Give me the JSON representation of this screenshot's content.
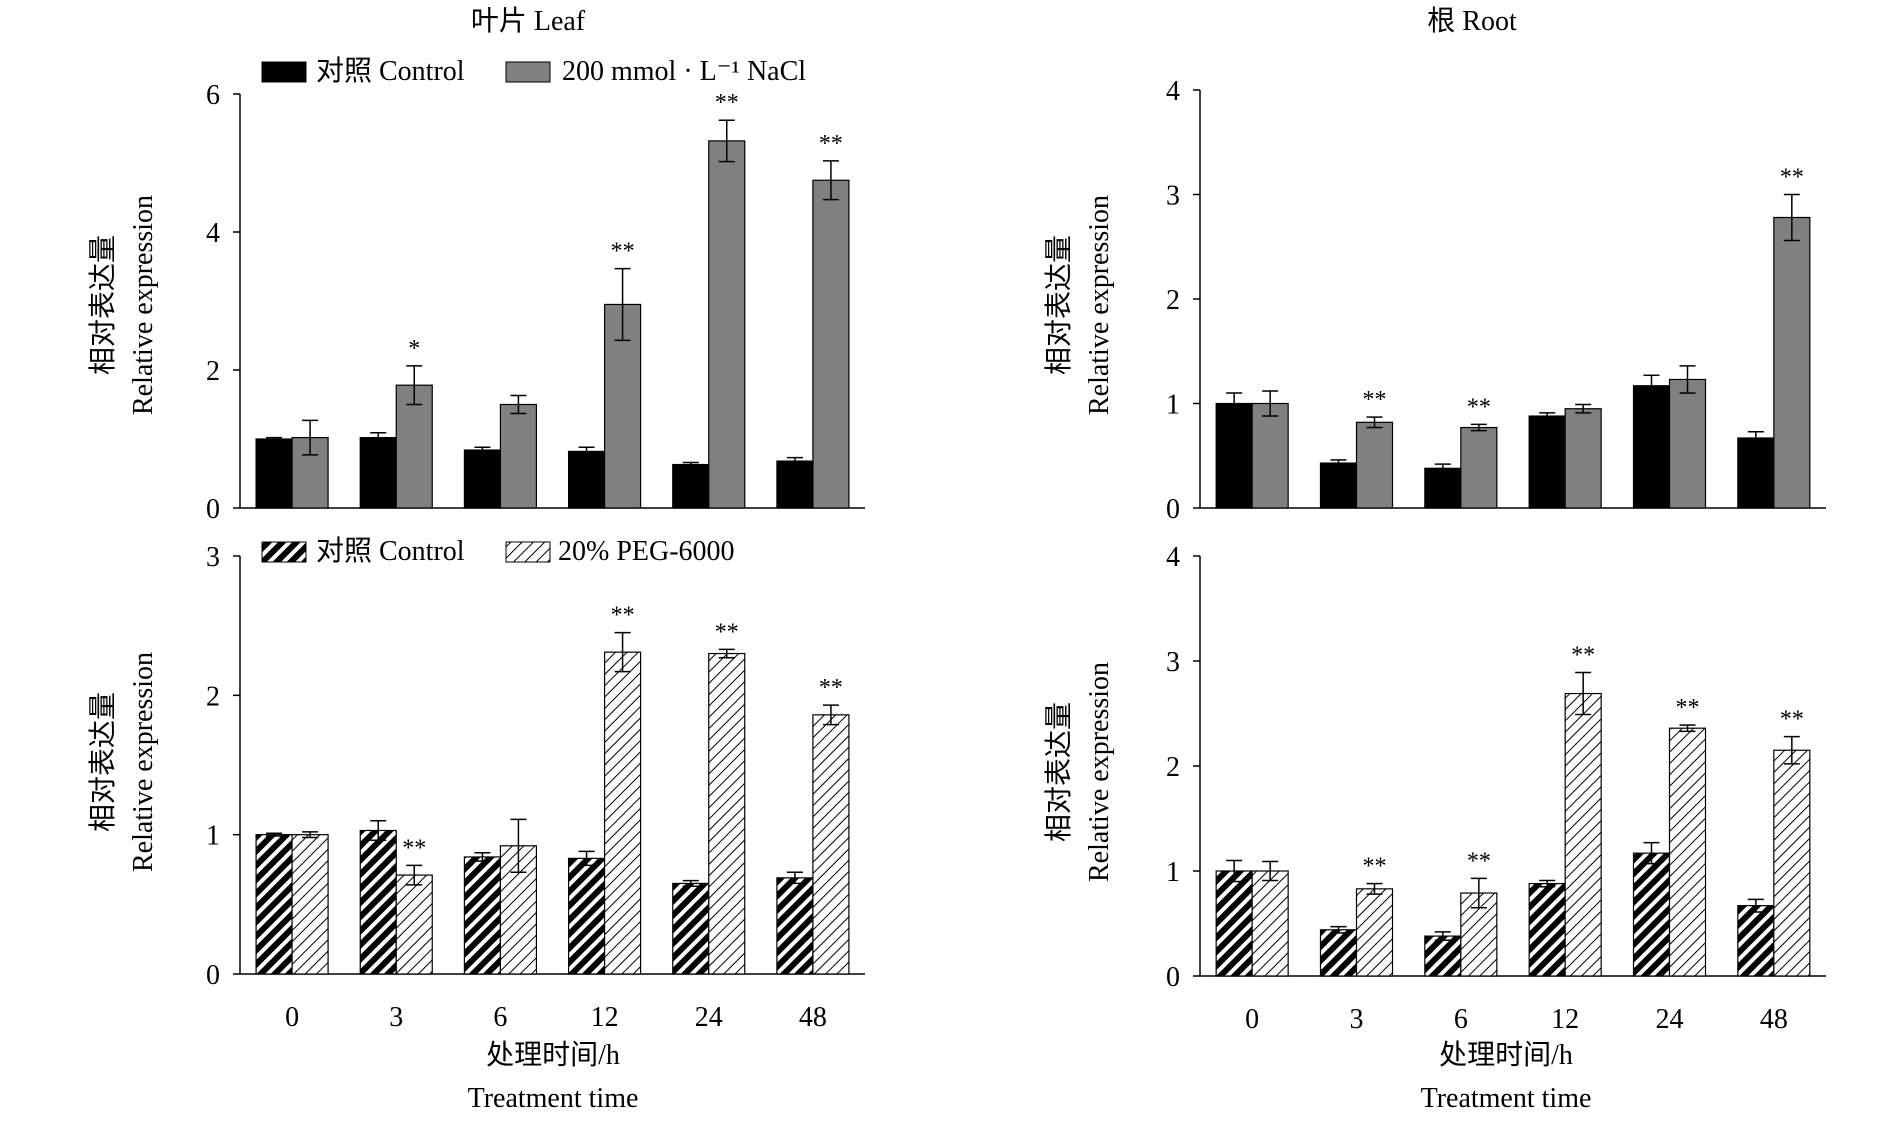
{
  "titles": {
    "leaf": "叶片 Leaf",
    "root": "根 Root"
  },
  "legends": {
    "nacl": {
      "control": "对照 Control",
      "treatment": "200 mmol · L⁻¹ NaCl"
    },
    "peg": {
      "control": "对照 Control",
      "treatment": "20% PEG-6000"
    }
  },
  "ylabel": {
    "zh": "相对表达量",
    "en": "Relative expression"
  },
  "xlabel": {
    "zh": "处理时间/h",
    "en": "Treatment time"
  },
  "colors": {
    "control": "#000000",
    "nacl": "#808080",
    "peg_hatch": "#000000"
  },
  "chart_data": [
    {
      "id": "leaf_nacl",
      "type": "bar",
      "tissue": "Leaf",
      "title": "叶片 Leaf",
      "categories": [
        "0",
        "3",
        "6",
        "12",
        "24",
        "48"
      ],
      "ylim": [
        0,
        6
      ],
      "yticks": [
        0,
        2,
        4,
        6
      ],
      "series": [
        {
          "name": "对照 Control",
          "values": [
            1.0,
            1.02,
            0.84,
            0.82,
            0.63,
            0.68
          ],
          "err": [
            0.02,
            0.07,
            0.04,
            0.06,
            0.03,
            0.05
          ],
          "sig": [
            "",
            "",
            "",
            "",
            "",
            ""
          ]
        },
        {
          "name": "200 mmol · L⁻¹ NaCl",
          "values": [
            1.02,
            1.78,
            1.5,
            2.95,
            5.32,
            4.75
          ],
          "err": [
            0.25,
            0.28,
            0.13,
            0.52,
            0.3,
            0.28
          ],
          "sig": [
            "",
            "*",
            "",
            "**",
            "**",
            "**"
          ]
        }
      ]
    },
    {
      "id": "root_nacl",
      "type": "bar",
      "tissue": "Root",
      "title": "根 Root",
      "categories": [
        "0",
        "3",
        "6",
        "12",
        "24",
        "48"
      ],
      "ylim": [
        0,
        4
      ],
      "yticks": [
        0,
        1,
        2,
        3,
        4
      ],
      "series": [
        {
          "name": "对照 Control",
          "values": [
            1.0,
            0.43,
            0.38,
            0.88,
            1.17,
            0.67
          ],
          "err": [
            0.1,
            0.03,
            0.04,
            0.03,
            0.1,
            0.06
          ],
          "sig": [
            "",
            "",
            "",
            "",
            "",
            ""
          ]
        },
        {
          "name": "200 mmol · L⁻¹ NaCl",
          "values": [
            1.0,
            0.82,
            0.77,
            0.95,
            1.23,
            2.78
          ],
          "err": [
            0.12,
            0.05,
            0.03,
            0.04,
            0.13,
            0.22
          ],
          "sig": [
            "",
            "**",
            "**",
            "",
            "",
            "**"
          ]
        }
      ]
    },
    {
      "id": "leaf_peg",
      "type": "bar",
      "tissue": "Leaf",
      "categories": [
        "0",
        "3",
        "6",
        "12",
        "24",
        "48"
      ],
      "ylim": [
        0,
        3
      ],
      "yticks": [
        0,
        1,
        2,
        3
      ],
      "series": [
        {
          "name": "对照 Control",
          "values": [
            1.0,
            1.03,
            0.84,
            0.83,
            0.65,
            0.69
          ],
          "err": [
            0.01,
            0.07,
            0.03,
            0.05,
            0.02,
            0.04
          ],
          "sig": [
            "",
            "",
            "",
            "",
            "",
            ""
          ]
        },
        {
          "name": "20% PEG-6000",
          "values": [
            1.0,
            0.71,
            0.92,
            2.31,
            2.3,
            1.86
          ],
          "err": [
            0.02,
            0.07,
            0.19,
            0.14,
            0.03,
            0.07
          ],
          "sig": [
            "",
            "**",
            "",
            "**",
            "**",
            "**"
          ]
        }
      ]
    },
    {
      "id": "root_peg",
      "type": "bar",
      "tissue": "Root",
      "categories": [
        "0",
        "3",
        "6",
        "12",
        "24",
        "48"
      ],
      "ylim": [
        0,
        4
      ],
      "yticks": [
        0,
        1,
        2,
        3,
        4
      ],
      "series": [
        {
          "name": "对照 Control",
          "values": [
            1.0,
            0.44,
            0.38,
            0.88,
            1.17,
            0.67
          ],
          "err": [
            0.1,
            0.03,
            0.04,
            0.03,
            0.1,
            0.06
          ],
          "sig": [
            "",
            "",
            "",
            "",
            "",
            ""
          ]
        },
        {
          "name": "20% PEG-6000",
          "values": [
            1.0,
            0.83,
            0.79,
            2.69,
            2.36,
            2.15
          ],
          "err": [
            0.09,
            0.05,
            0.14,
            0.2,
            0.03,
            0.13
          ],
          "sig": [
            "",
            "**",
            "**",
            "**",
            "**",
            "**"
          ]
        }
      ]
    }
  ]
}
